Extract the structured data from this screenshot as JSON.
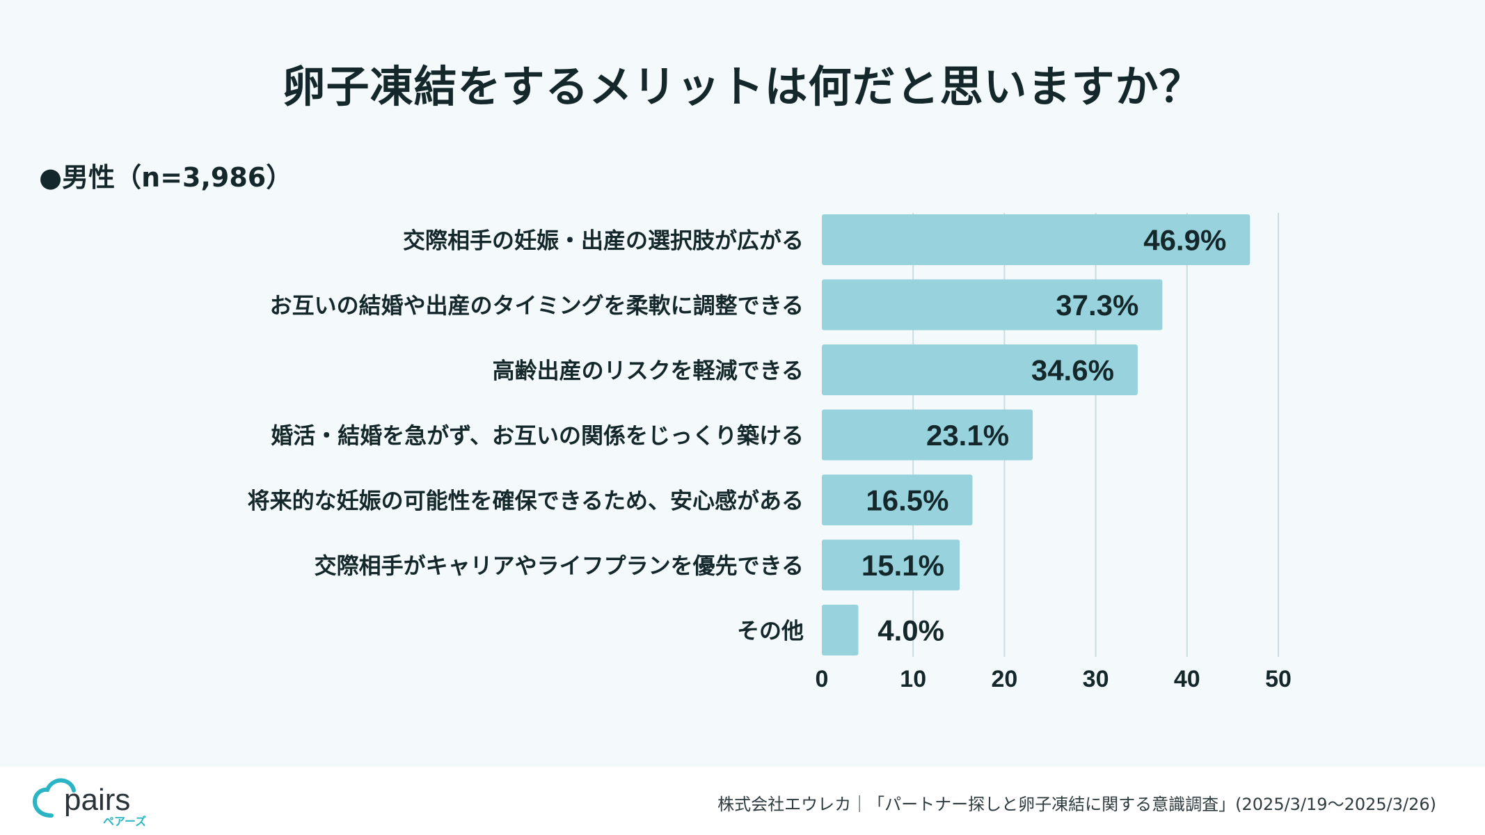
{
  "title": "卵子凍結をするメリットは何だと思いますか？",
  "segment_label": "●男性（n=3,986）",
  "chart_data": {
    "type": "bar",
    "orientation": "horizontal",
    "title": "卵子凍結をするメリットは何だと思いますか？",
    "categories": [
      "交際相手の妊娠・出産の選択肢が広がる",
      "お互いの結婚や出産のタイミングを柔軟に調整できる",
      "高齢出産のリスクを軽減できる",
      "婚活・結婚を急がず、お互いの関係をじっくり築ける",
      "将来的な妊娠の可能性を確保できるため、安心感がある",
      "交際相手がキャリアやライフプランを優先できる",
      "その他"
    ],
    "values": [
      46.9,
      37.3,
      34.6,
      23.1,
      16.5,
      15.1,
      4.0
    ],
    "value_labels": [
      "46.9%",
      "37.3%",
      "34.6%",
      "23.1%",
      "16.5%",
      "15.1%",
      "4.0%"
    ],
    "xlim": [
      0,
      50
    ],
    "xticks": [
      0,
      10,
      20,
      30,
      40,
      50
    ],
    "xtick_labels": [
      "0",
      "10",
      "20",
      "30",
      "40",
      "50"
    ],
    "grid": true,
    "bar_color": "#98d3dd",
    "gridline_color": "#c9dde1"
  },
  "footer": {
    "logo_text": "pairs",
    "logo_subtext": "ペアーズ",
    "source": "株式会社エウレカ｜「パートナー探しと卵子凍結に関する意識調査」(2025/3/19〜2025/3/26)"
  },
  "colors": {
    "panel_background": "#f4fafb",
    "text": "#14272b",
    "logo": "#2bb5c4"
  }
}
